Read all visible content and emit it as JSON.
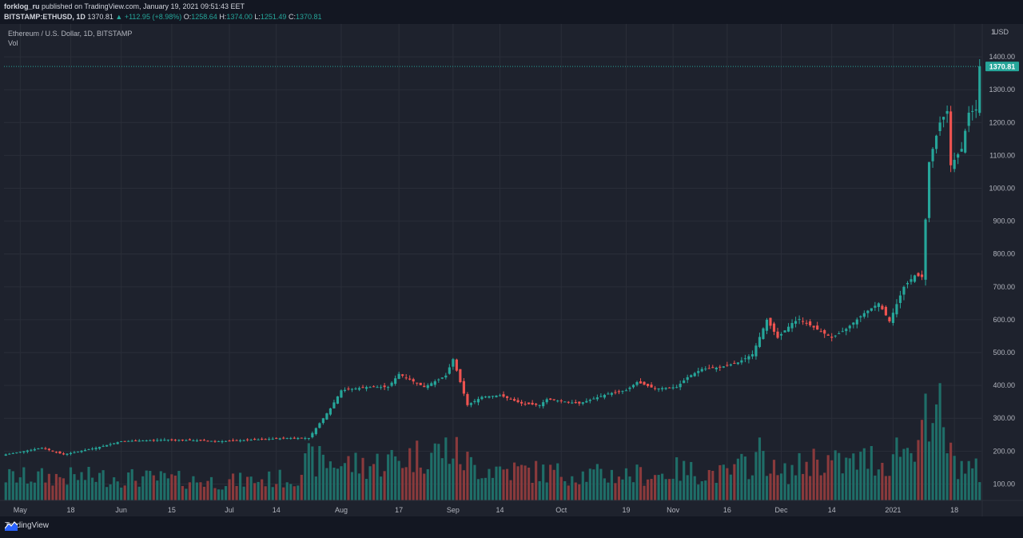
{
  "header": {
    "publisher": "forklog_ru",
    "published_text": "published on TradingView.com, January 19, 2021 09:51:43 EET",
    "symbol": "BITSTAMP:ETHUSD, 1D",
    "last": "1370.81",
    "change": "▲ +112.95 (+8.98%)",
    "o_label": "O:",
    "o_val": "1258.64",
    "h_label": "H:",
    "h_val": "1374.00",
    "l_label": "L:",
    "l_val": "1251.49",
    "c_label": "C:",
    "c_val": "1370.81"
  },
  "legend": {
    "title": "Ethereum / U.S. Dollar, 1D, BITSTAMP",
    "vol": "Vol"
  },
  "footer": {
    "brand": "TradingView"
  },
  "colors": {
    "up": "#26a69a",
    "down": "#ef5350",
    "up_vol": "#1f6e68",
    "down_vol": "#8a3a3c",
    "grid": "#2a2e39",
    "text": "#b2b5be",
    "price_label_bg": "#26a69a"
  },
  "chart_data": {
    "type": "candlestick",
    "title": "Ethereum / U.S. Dollar, 1D, BITSTAMP",
    "currency_label": "USD",
    "y_scale_label": "1",
    "last_price_label": "1370.81",
    "last_price": 1370.81,
    "ylim": [
      50,
      1500
    ],
    "y_ticks": [
      100,
      200,
      300,
      400,
      500,
      600,
      700,
      800,
      900,
      1000,
      1100,
      1200,
      1300,
      1400
    ],
    "y_tick_labels": [
      "100.00",
      "200.00",
      "300.00",
      "400.00",
      "500.00",
      "600.00",
      "700.00",
      "800.00",
      "900.00",
      "1000.00",
      "1100.00",
      "1200.00",
      "1300.00",
      "1400.00"
    ],
    "x_labels": [
      {
        "label": "May",
        "day": 4
      },
      {
        "label": "18",
        "day": 18
      },
      {
        "label": "Jun",
        "day": 32
      },
      {
        "label": "15",
        "day": 46
      },
      {
        "label": "Jul",
        "day": 62
      },
      {
        "label": "14",
        "day": 75
      },
      {
        "label": "Aug",
        "day": 93
      },
      {
        "label": "17",
        "day": 109
      },
      {
        "label": "Sep",
        "day": 124
      },
      {
        "label": "14",
        "day": 137
      },
      {
        "label": "Oct",
        "day": 154
      },
      {
        "label": "19",
        "day": 172
      },
      {
        "label": "Nov",
        "day": 185
      },
      {
        "label": "16",
        "day": 200
      },
      {
        "label": "Dec",
        "day": 215
      },
      {
        "label": "14",
        "day": 229
      },
      {
        "label": "2021",
        "day": 246
      },
      {
        "label": "18",
        "day": 263
      }
    ],
    "days_total": 271,
    "close_anchors": [
      [
        0,
        190
      ],
      [
        10,
        210
      ],
      [
        16,
        190
      ],
      [
        25,
        210
      ],
      [
        32,
        230
      ],
      [
        45,
        235
      ],
      [
        60,
        230
      ],
      [
        78,
        240
      ],
      [
        84,
        240
      ],
      [
        90,
        330
      ],
      [
        93,
        385
      ],
      [
        100,
        395
      ],
      [
        106,
        395
      ],
      [
        109,
        435
      ],
      [
        116,
        395
      ],
      [
        122,
        430
      ],
      [
        124,
        480
      ],
      [
        128,
        340
      ],
      [
        132,
        365
      ],
      [
        137,
        370
      ],
      [
        143,
        345
      ],
      [
        148,
        340
      ],
      [
        150,
        358
      ],
      [
        159,
        345
      ],
      [
        167,
        375
      ],
      [
        172,
        385
      ],
      [
        175,
        410
      ],
      [
        180,
        390
      ],
      [
        186,
        395
      ],
      [
        189,
        425
      ],
      [
        193,
        450
      ],
      [
        198,
        455
      ],
      [
        203,
        470
      ],
      [
        207,
        495
      ],
      [
        211,
        600
      ],
      [
        214,
        545
      ],
      [
        218,
        590
      ],
      [
        220,
        602
      ],
      [
        225,
        570
      ],
      [
        229,
        545
      ],
      [
        233,
        572
      ],
      [
        238,
        620
      ],
      [
        242,
        650
      ],
      [
        245,
        595
      ],
      [
        249,
        700
      ],
      [
        252,
        735
      ],
      [
        254,
        730
      ],
      [
        256,
        1080
      ],
      [
        259,
        1200
      ],
      [
        261,
        1235
      ],
      [
        262,
        1070
      ],
      [
        265,
        1120
      ],
      [
        267,
        1230
      ],
      [
        269,
        1240
      ],
      [
        270,
        1370.81
      ]
    ],
    "volume_max": 480,
    "volume_anchors": [
      [
        0,
        100
      ],
      [
        30,
        100
      ],
      [
        60,
        80
      ],
      [
        80,
        95
      ],
      [
        84,
        170
      ],
      [
        100,
        150
      ],
      [
        123,
        220
      ],
      [
        130,
        140
      ],
      [
        160,
        110
      ],
      [
        182,
        110
      ],
      [
        185,
        130
      ],
      [
        200,
        110
      ],
      [
        206,
        160
      ],
      [
        210,
        210
      ],
      [
        214,
        100
      ],
      [
        225,
        180
      ],
      [
        232,
        150
      ],
      [
        240,
        180
      ],
      [
        244,
        150
      ],
      [
        248,
        240
      ],
      [
        251,
        200
      ],
      [
        253,
        350
      ],
      [
        255,
        330
      ],
      [
        257,
        240
      ],
      [
        259,
        420
      ],
      [
        262,
        180
      ],
      [
        265,
        150
      ],
      [
        270,
        120
      ]
    ]
  }
}
